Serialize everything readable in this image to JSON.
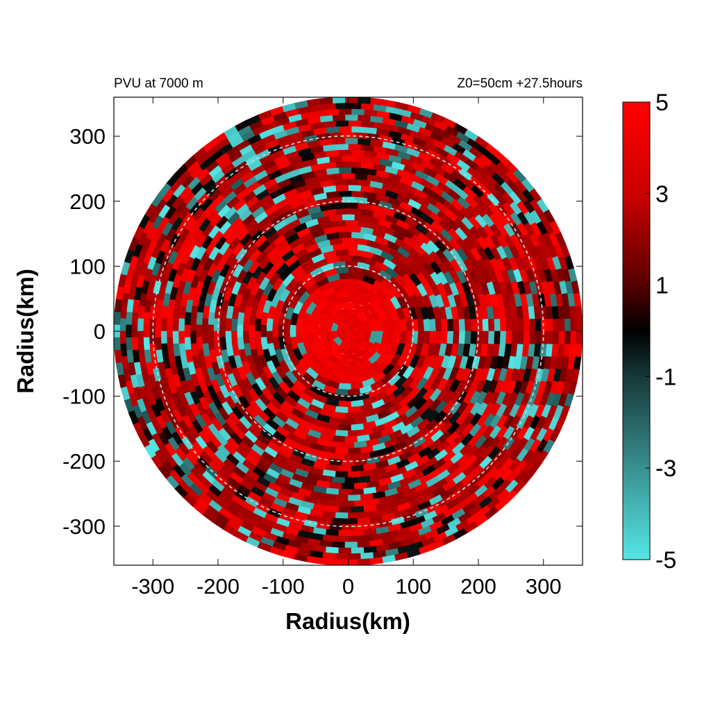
{
  "chart_data": {
    "type": "heatmap",
    "title_left": "PVU at  7000 m",
    "title_right": "Z0=50cm  +27.5hours",
    "xlabel": "Radius(km)",
    "ylabel": "Radius(km)",
    "xlim": [
      -360,
      360
    ],
    "ylim": [
      -360,
      360
    ],
    "x_ticks": [
      -300,
      -200,
      -100,
      0,
      100,
      200,
      300
    ],
    "y_ticks": [
      300,
      200,
      100,
      0,
      -100,
      -200,
      -300
    ],
    "domain_radius_km": 360,
    "reference_circles_km": [
      100,
      200,
      300
    ],
    "colorbar": {
      "range": [
        -5,
        5
      ],
      "tick_labels": [
        "5",
        "3",
        "1",
        "-1",
        "-3",
        "-5"
      ],
      "tick_values": [
        5,
        3,
        1,
        -1,
        -3,
        -5
      ],
      "colors": {
        "high": "#ff0000",
        "mid_high": "#990000",
        "zero": "#000000",
        "mid_low": "#2a6a6a",
        "low": "#55e6e6"
      }
    },
    "description_values": {
      "core_radius_km": 80,
      "core_value": 5
    }
  }
}
